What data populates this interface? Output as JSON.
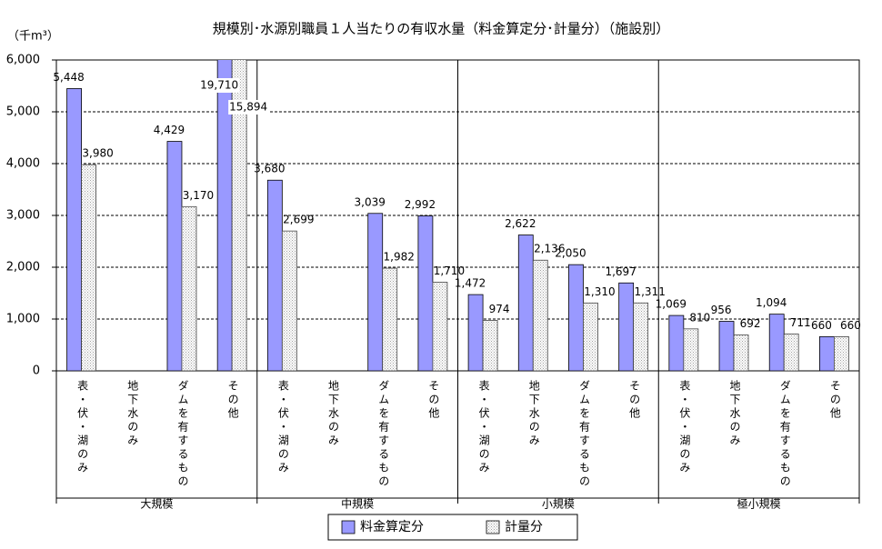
{
  "chart_data": {
    "type": "bar",
    "title": "規模別･水源別職員１人当たりの有収水量（料金算定分･計量分）（施設別）",
    "y_axis_label": "（千m³）",
    "categories": [
      "表・伏・湖のみ",
      "地下水のみ",
      "ダムを有するもの",
      "その他",
      "表・伏・湖のみ",
      "地下水のみ",
      "ダムを有するもの",
      "その他",
      "表・伏・湖のみ",
      "地下水のみ",
      "ダムを有するもの",
      "その他",
      "表・伏・湖のみ",
      "地下水のみ",
      "ダムを有するもの",
      "その他"
    ],
    "groups": [
      "大規模",
      "中規模",
      "小規模",
      "極小規模"
    ],
    "series": [
      {
        "name": "料金算定分",
        "color": "#9999ff",
        "values": [
          5448,
          null,
          4429,
          19710,
          3680,
          null,
          3039,
          2992,
          1472,
          2622,
          2050,
          1697,
          1069,
          956,
          1094,
          660
        ],
        "value_labels": [
          "5,448",
          null,
          "4,429",
          "19,710",
          "3,680",
          null,
          "3,039",
          "2,992",
          "1,472",
          "2,622",
          "2,050",
          "1,697",
          "1,069",
          "956",
          "1,094",
          "660"
        ]
      },
      {
        "name": "計量分",
        "color": "#a0a0a0",
        "values": [
          3980,
          null,
          3170,
          15894,
          2699,
          null,
          1982,
          1710,
          974,
          2136,
          1310,
          1311,
          810,
          692,
          711,
          660
        ],
        "value_labels": [
          "3,980",
          null,
          "3,170",
          "15,894",
          "2,699",
          null,
          "1,982",
          "1,710",
          "974",
          "2,136",
          "1,310",
          "1,311",
          "810",
          "692",
          "711",
          "660"
        ]
      }
    ],
    "ylim": [
      0,
      6000
    ],
    "yticks": [
      0,
      {
        "value": 1000,
        "label": "1,000"
      },
      {
        "value": 2000,
        "label": "2,000"
      },
      {
        "value": 3000,
        "label": "3,000"
      },
      {
        "value": 4000,
        "label": "4,000"
      },
      {
        "value": 5000,
        "label": "5,000"
      },
      {
        "value": 6000,
        "label": "6,000"
      }
    ],
    "grid": true,
    "legend": "bottom"
  }
}
